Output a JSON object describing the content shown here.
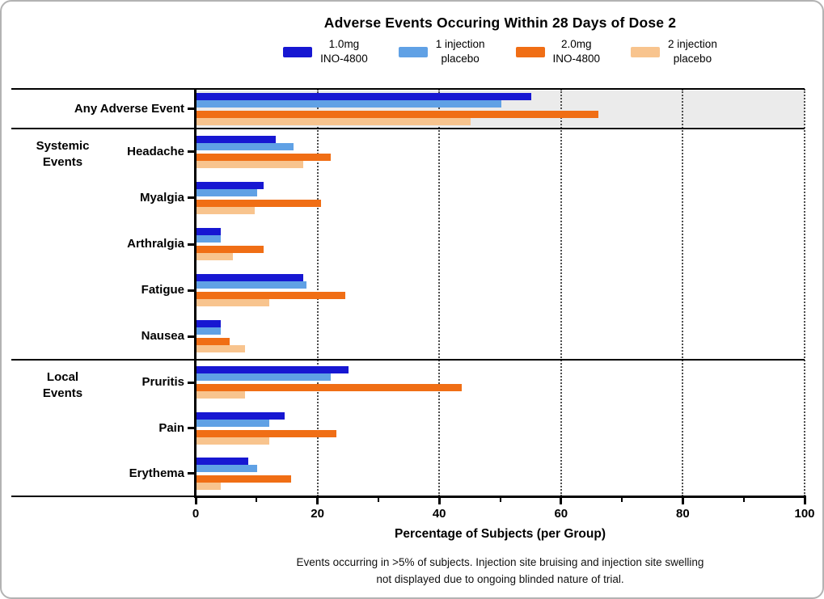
{
  "title": "Adverse Events Occuring Within 28 Days of Dose 2",
  "chart_data": {
    "type": "bar",
    "orientation": "horizontal",
    "title": "Adverse Events Occuring Within 28 Days of Dose 2",
    "xlabel": "Percentage of Subjects (per Group)",
    "xlim": [
      0,
      100
    ],
    "x_ticks": [
      0,
      20,
      40,
      60,
      80,
      100
    ],
    "x_minor_ticks": [
      10,
      30,
      50,
      70,
      90
    ],
    "gridlines": [
      20,
      40,
      60,
      80,
      100
    ],
    "legend_position": "top",
    "series": [
      {
        "name": "1.0mg INO-4800",
        "label": "1.0mg\nINO-4800",
        "color": "#1717D2"
      },
      {
        "name": "1 injection placebo",
        "label": "1 injection\nplacebo",
        "color": "#60A1E5"
      },
      {
        "name": "2.0mg INO-4800",
        "label": "2.0mg\nINO-4800",
        "color": "#F06E15"
      },
      {
        "name": "2 injection placebo",
        "label": "2 injection\nplacebo",
        "color": "#F8C48E"
      }
    ],
    "highlight_row": {
      "category": "Any Adverse Event",
      "background": "#EBEBEB",
      "values": [
        55,
        50,
        66,
        45
      ]
    },
    "sections": [
      {
        "label": "Systemic\nEvents",
        "rows": [
          {
            "category": "Headache",
            "values": [
              13,
              16,
              22,
              17.5
            ]
          },
          {
            "category": "Myalgia",
            "values": [
              11,
              10,
              20.5,
              9.5
            ]
          },
          {
            "category": "Arthralgia",
            "values": [
              4,
              4,
              11,
              6
            ]
          },
          {
            "category": "Fatigue",
            "values": [
              17.5,
              18,
              24.5,
              12
            ]
          },
          {
            "category": "Nausea",
            "values": [
              4,
              4,
              5.5,
              8
            ]
          }
        ]
      },
      {
        "label": "Local\nEvents",
        "rows": [
          {
            "category": "Pruritis",
            "values": [
              25,
              22,
              43.5,
              8
            ]
          },
          {
            "category": "Pain",
            "values": [
              14.5,
              12,
              23,
              12
            ]
          },
          {
            "category": "Erythema",
            "values": [
              8.5,
              10,
              15.5,
              4
            ]
          }
        ]
      }
    ],
    "footnote_line1": "Events occurring in >5% of subjects. Injection site bruising and injection site swelling",
    "footnote_line2": "not displayed due to ongoing blinded nature of trial."
  }
}
